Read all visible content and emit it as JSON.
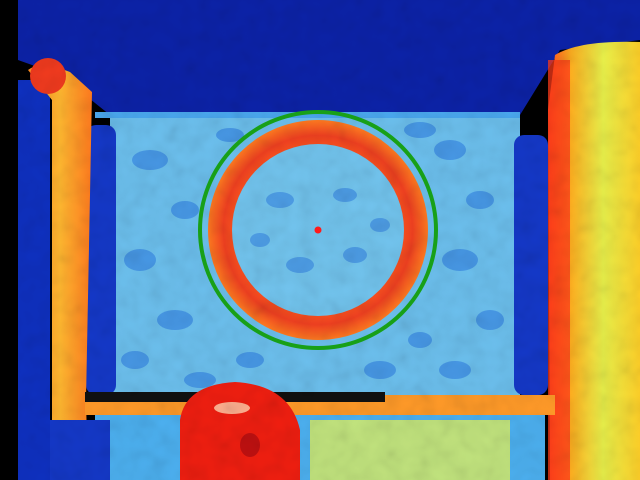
{
  "image": {
    "kind": "false-color depth map",
    "colormap": "jet",
    "colors": {
      "near": "#e8321e",
      "mid": "#ffd21e",
      "far_background": "#7ac8f0",
      "ceiling": "#0a1e9e",
      "void": "#000000",
      "detected_ring": "#18a018",
      "center_marker": "#ff1a1a"
    },
    "features": [
      {
        "name": "ceiling",
        "depth": "far"
      },
      {
        "name": "back-wall",
        "depth": "mid-far"
      },
      {
        "name": "circular-ring-object",
        "depth": "near"
      },
      {
        "name": "left-pillar",
        "depth": "near"
      },
      {
        "name": "right-pillar",
        "depth": "near"
      },
      {
        "name": "foreground-blob",
        "depth": "nearest"
      }
    ],
    "overlays": [
      "detected-circle-outline",
      "detected-circle-center"
    ]
  }
}
